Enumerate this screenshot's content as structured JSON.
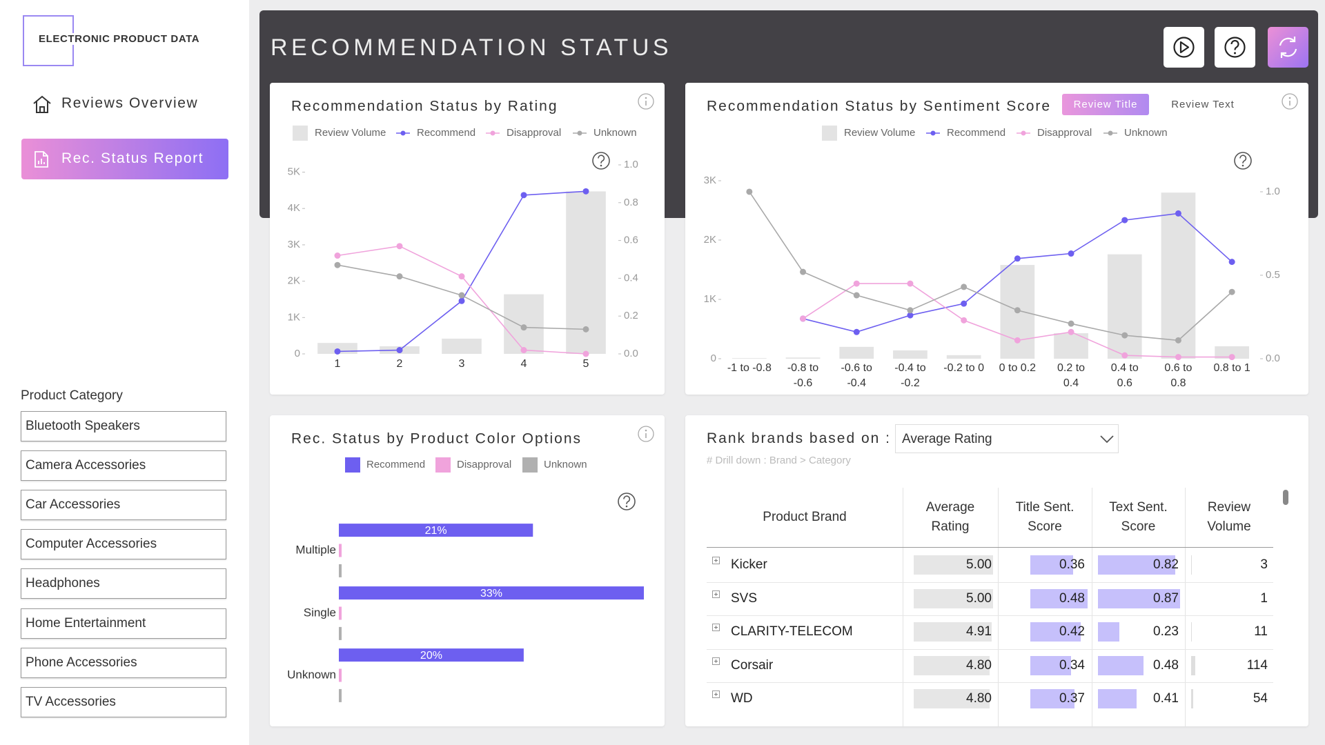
{
  "sidebar": {
    "logo": "ELECTRONIC PRODUCT DATA",
    "nav": [
      "Reviews Overview",
      "Rec. Status Report"
    ],
    "filter": {
      "title": "Product Category",
      "items": [
        "Bluetooth Speakers",
        "Camera Accessories",
        "Car Accessories",
        "Computer Accessories",
        "Headphones",
        "Home Entertainment",
        "Phone Accessories",
        "TV Accessories"
      ]
    }
  },
  "header": {
    "title": "RECOMMENDATION STATUS"
  },
  "chart_data": [
    {
      "type": "combo",
      "title": "Recommendation Status by Rating",
      "categories": [
        "1",
        "2",
        "3",
        "4",
        "5"
      ],
      "series": [
        {
          "name": "Review Volume",
          "type": "bar",
          "color": "#e3e3e3",
          "values": [
            300,
            210,
            420,
            1640,
            4470
          ]
        },
        {
          "name": "Recommend",
          "type": "line",
          "axis": "y2",
          "color": "#6d5ff0",
          "values": [
            0.013,
            0.02,
            0.28,
            0.84,
            0.86
          ]
        },
        {
          "name": "Disapproval",
          "type": "line",
          "axis": "y2",
          "color": "#f0a3dc",
          "values": [
            0.52,
            0.57,
            0.41,
            0.02,
            0.0
          ]
        },
        {
          "name": "Unknown",
          "type": "line",
          "axis": "y2",
          "color": "#a9a9a9",
          "values": [
            0.47,
            0.41,
            0.31,
            0.14,
            0.13
          ]
        }
      ],
      "ylim": [
        0,
        5200
      ],
      "yticks": [
        0,
        {
          "value": 1000,
          "label": "1K"
        },
        {
          "value": 2000,
          "label": "2K"
        },
        {
          "value": 3000,
          "label": "3K"
        },
        {
          "value": 4000,
          "label": "4K"
        },
        {
          "value": 5000,
          "label": "5K"
        }
      ],
      "y2lim": [
        0,
        1.0
      ],
      "y2ticks": [
        {
          "value": 0,
          "label": "0.0"
        },
        0.2,
        0.4,
        0.6,
        0.8,
        {
          "value": 1,
          "label": "1.0"
        }
      ],
      "grid": false
    },
    {
      "type": "combo",
      "title": "Recommendation Status by Sentiment Score",
      "toggle": {
        "options": [
          "Review Title",
          "Review Text"
        ],
        "selected": 0
      },
      "categories": [
        "-1 to -0.8",
        "-0.8 to -0.6",
        "-0.6 to -0.4",
        "-0.4 to -0.2",
        "-0.2 to 0",
        "0 to 0.2",
        "0.2 to 0.4",
        "0.4 to 0.6",
        "0.6 to 0.8",
        "0.8 to 1"
      ],
      "series": [
        {
          "name": "Review Volume",
          "type": "bar",
          "color": "#e3e3e3",
          "values": [
            10,
            20,
            200,
            140,
            60,
            1580,
            430,
            1760,
            2800,
            210
          ]
        },
        {
          "name": "Recommend",
          "type": "line",
          "axis": "y2",
          "color": "#6d5ff0",
          "values": [
            null,
            0.24,
            0.16,
            0.26,
            0.33,
            0.6,
            0.63,
            0.83,
            0.87,
            0.58
          ]
        },
        {
          "name": "Disapproval",
          "type": "line",
          "axis": "y2",
          "color": "#f0a3dc",
          "values": [
            null,
            0.24,
            0.45,
            0.45,
            0.23,
            0.11,
            0.16,
            0.02,
            0.01,
            0.01
          ]
        },
        {
          "name": "Unknown",
          "type": "line",
          "axis": "y2",
          "color": "#a9a9a9",
          "values": [
            1.0,
            0.52,
            0.38,
            0.29,
            0.43,
            0.29,
            0.21,
            0.14,
            0.11,
            0.4
          ]
        }
      ],
      "ylim": [
        0,
        3000
      ],
      "yticks": [
        0,
        {
          "value": 1000,
          "label": "1K"
        },
        {
          "value": 2000,
          "label": "2K"
        },
        {
          "value": 3000,
          "label": "3K"
        }
      ],
      "y2lim": [
        0,
        1.066
      ],
      "y2ticks": [
        {
          "value": 0,
          "label": "0.0"
        },
        0.5,
        {
          "value": 1,
          "label": "1.0"
        }
      ],
      "grid": false
    },
    {
      "type": "hbar",
      "title": "Rec. Status by Product Color Options",
      "categories": [
        "Multiple",
        "Single",
        "Unknown"
      ],
      "series": [
        {
          "name": "Recommend",
          "color": "#6d5ff0",
          "values": [
            21,
            33,
            20
          ],
          "value_labels": [
            "21%",
            "33%",
            "20%"
          ]
        },
        {
          "name": "Disapproval",
          "color": "#f0a3dc",
          "values": [
            0.3,
            0.3,
            0.3
          ]
        },
        {
          "name": "Unknown",
          "color": "#b0b0b0",
          "values": [
            0.3,
            0.3,
            0.3
          ]
        }
      ],
      "xlim": [
        0,
        33
      ]
    }
  ],
  "table": {
    "title": "Rank brands based on :",
    "dropdown": "Average Rating",
    "note": "# Drill down : Brand > Category",
    "columns": [
      "Product Brand",
      "Average Rating",
      "Title Sent. Score",
      "Text Sent. Score",
      "Review Volume"
    ],
    "rows": [
      [
        "Kicker",
        {
          "value": 5,
          "label": "5.00"
        },
        0.36,
        0.82,
        3
      ],
      [
        "SVS",
        {
          "value": 5,
          "label": "5.00"
        },
        0.48,
        0.87,
        1
      ],
      [
        "CLARITY-TELECOM",
        4.91,
        0.42,
        0.23,
        11
      ],
      [
        "Corsair",
        {
          "value": 4.8,
          "label": "4.80"
        },
        0.34,
        0.48,
        114
      ],
      [
        "WD",
        {
          "value": 4.8,
          "label": "4.80"
        },
        0.37,
        0.41,
        54
      ]
    ]
  }
}
